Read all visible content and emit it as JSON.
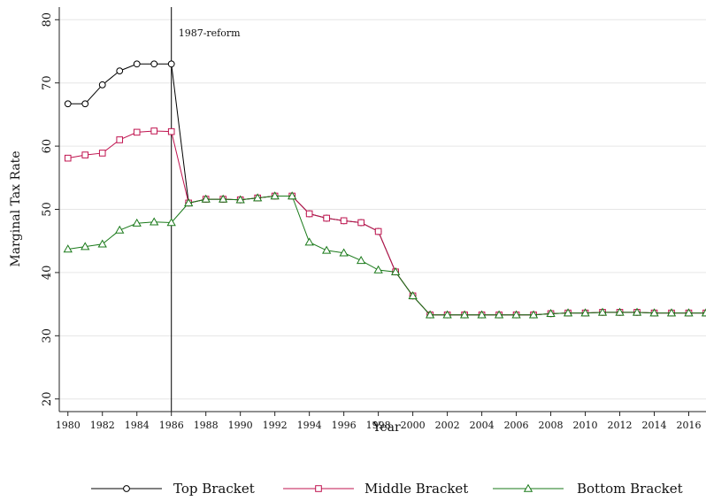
{
  "chart_data": {
    "type": "line",
    "title": "",
    "xlabel": "Year",
    "ylabel": "Marginal Tax Rate",
    "xlim": [
      1979.5,
      2017
    ],
    "ylim": [
      18,
      82
    ],
    "xticks": [
      1980,
      1982,
      1984,
      1986,
      1988,
      1990,
      1992,
      1994,
      1996,
      1998,
      2000,
      2002,
      2004,
      2006,
      2008,
      2010,
      2012,
      2014,
      2016
    ],
    "yticks": [
      20,
      30,
      40,
      50,
      60,
      70,
      80
    ],
    "grid": true,
    "legend_position": "bottom",
    "annotation": {
      "x": 1986,
      "text": "1987-reform"
    },
    "x": [
      1980,
      1981,
      1982,
      1983,
      1984,
      1985,
      1986,
      1987,
      1988,
      1989,
      1990,
      1991,
      1992,
      1993,
      1994,
      1995,
      1996,
      1997,
      1998,
      1999,
      2000,
      2001,
      2002,
      2003,
      2004,
      2005,
      2006,
      2007,
      2008,
      2009,
      2010,
      2011,
      2012,
      2013,
      2014,
      2015,
      2016,
      2017
    ],
    "series": [
      {
        "name": "Top Bracket",
        "color": "#000000",
        "marker": "circle",
        "values": [
          66.7,
          66.7,
          69.7,
          71.9,
          73.0,
          73.0,
          73.0,
          51.0,
          51.6,
          51.6,
          51.5,
          51.8,
          52.1,
          52.1,
          49.3,
          48.6,
          48.2,
          47.9,
          46.5,
          40.1,
          36.3,
          33.3,
          33.3,
          33.3,
          33.3,
          33.3,
          33.3,
          33.3,
          33.5,
          33.6,
          33.6,
          33.7,
          33.7,
          33.7,
          33.6,
          33.6,
          33.6,
          33.6
        ]
      },
      {
        "name": "Middle Bracket",
        "color": "#c0134f",
        "marker": "square",
        "values": [
          58.1,
          58.6,
          58.9,
          61.0,
          62.2,
          62.4,
          62.3,
          51.0,
          51.6,
          51.6,
          51.5,
          51.8,
          52.1,
          52.1,
          49.3,
          48.6,
          48.2,
          47.9,
          46.5,
          40.1,
          36.3,
          33.3,
          33.3,
          33.3,
          33.3,
          33.3,
          33.3,
          33.3,
          33.5,
          33.6,
          33.6,
          33.7,
          33.7,
          33.7,
          33.6,
          33.6,
          33.6,
          33.6
        ]
      },
      {
        "name": "Bottom Bracket",
        "color": "#1a7a1a",
        "marker": "triangle",
        "values": [
          43.7,
          44.1,
          44.5,
          46.7,
          47.8,
          48.0,
          47.9,
          51.0,
          51.6,
          51.6,
          51.5,
          51.8,
          52.1,
          52.1,
          44.8,
          43.5,
          43.1,
          41.9,
          40.4,
          40.1,
          36.3,
          33.3,
          33.3,
          33.3,
          33.3,
          33.3,
          33.3,
          33.3,
          33.5,
          33.6,
          33.6,
          33.7,
          33.7,
          33.7,
          33.6,
          33.6,
          33.6,
          33.6
        ]
      }
    ]
  }
}
